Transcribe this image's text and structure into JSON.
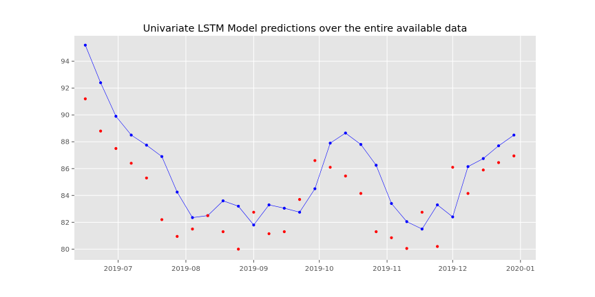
{
  "chart_data": {
    "type": "line",
    "title": "Univariate LSTM Model predictions over the entire available data",
    "xlabel": "",
    "ylabel": "",
    "x_axis": "date",
    "xlim": [
      "2019-06-11",
      "2020-01-08"
    ],
    "ylim": [
      79.2,
      95.9
    ],
    "grid": true,
    "x_ticks": [
      "2019-07",
      "2019-08",
      "2019-09",
      "2019-10",
      "2019-11",
      "2019-12",
      "2020-01"
    ],
    "x_tick_dates": [
      "2019-07-01",
      "2019-08-01",
      "2019-09-01",
      "2019-10-01",
      "2019-11-01",
      "2019-12-01",
      "2020-01-01"
    ],
    "y_ticks": [
      80,
      82,
      84,
      86,
      88,
      90,
      92,
      94
    ],
    "colors": {
      "actual": "#0000ff",
      "predicted": "#ff0000",
      "background": "#e5e5e5",
      "grid": "#ffffff"
    },
    "x": [
      "2019-06-16",
      "2019-06-23",
      "2019-06-30",
      "2019-07-07",
      "2019-07-14",
      "2019-07-21",
      "2019-07-28",
      "2019-08-04",
      "2019-08-11",
      "2019-08-18",
      "2019-08-25",
      "2019-09-01",
      "2019-09-08",
      "2019-09-15",
      "2019-09-22",
      "2019-09-29",
      "2019-10-06",
      "2019-10-13",
      "2019-10-20",
      "2019-10-27",
      "2019-11-03",
      "2019-11-10",
      "2019-11-17",
      "2019-11-24",
      "2019-12-01",
      "2019-12-08",
      "2019-12-15",
      "2019-12-22",
      "2019-12-29"
    ],
    "series": [
      {
        "style": "line-with-markers",
        "color": "#0000ff",
        "values": [
          95.2,
          92.4,
          89.9,
          88.5,
          87.75,
          86.9,
          84.25,
          82.35,
          82.5,
          83.6,
          83.2,
          81.8,
          83.3,
          83.05,
          82.75,
          84.5,
          87.9,
          88.65,
          87.8,
          86.25,
          83.4,
          82.05,
          81.5,
          83.3,
          82.4,
          86.15,
          86.75,
          87.7,
          88.5
        ]
      },
      {
        "style": "markers",
        "color": "#ff0000",
        "values": [
          91.2,
          88.8,
          87.5,
          86.4,
          85.3,
          82.2,
          80.95,
          81.5,
          82.5,
          81.3,
          80.0,
          82.75,
          81.15,
          81.3,
          83.7,
          86.6,
          86.1,
          85.45,
          84.15,
          81.3,
          80.85,
          80.05,
          82.75,
          80.2,
          86.1,
          84.15,
          85.9,
          86.45,
          86.95
        ]
      }
    ]
  }
}
